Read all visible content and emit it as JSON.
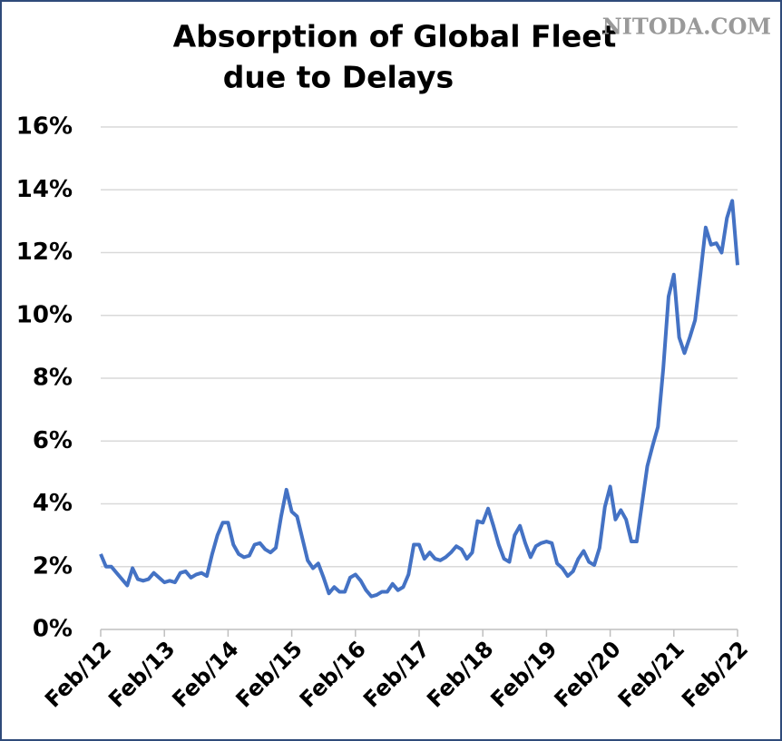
{
  "chart_data": {
    "type": "line",
    "title": [
      "Absorption of Global Fleet",
      "due to Delays"
    ],
    "watermark": "NITODA.COM",
    "categories": [
      "Feb/12",
      null,
      null,
      null,
      null,
      null,
      null,
      null,
      null,
      null,
      null,
      null,
      "Feb/13",
      null,
      null,
      null,
      null,
      null,
      null,
      null,
      null,
      null,
      null,
      null,
      "Feb/14",
      null,
      null,
      null,
      null,
      null,
      null,
      null,
      null,
      null,
      null,
      null,
      "Feb/15",
      null,
      null,
      null,
      null,
      null,
      null,
      null,
      null,
      null,
      null,
      null,
      "Feb/16",
      null,
      null,
      null,
      null,
      null,
      null,
      null,
      null,
      null,
      null,
      null,
      "Feb/17",
      null,
      null,
      null,
      null,
      null,
      null,
      null,
      null,
      null,
      null,
      null,
      "Feb/18",
      null,
      null,
      null,
      null,
      null,
      null,
      null,
      null,
      null,
      null,
      null,
      "Feb/19",
      null,
      null,
      null,
      null,
      null,
      null,
      null,
      null,
      null,
      null,
      null,
      "Feb/20",
      null,
      null,
      null,
      null,
      null,
      null,
      null,
      null,
      null,
      null,
      null,
      "Feb/21",
      null,
      null,
      null,
      null,
      null,
      null,
      null,
      null,
      null,
      null,
      null,
      "Feb/22"
    ],
    "series": [
      {
        "name": "Absorption",
        "color": "#4472c4",
        "values": [
          2.4,
          2.0,
          2.0,
          1.8,
          1.6,
          1.4,
          1.95,
          1.6,
          1.55,
          1.6,
          1.8,
          1.65,
          1.5,
          1.55,
          1.5,
          1.8,
          1.85,
          1.65,
          1.75,
          1.8,
          1.7,
          2.4,
          3.0,
          3.4,
          3.4,
          2.7,
          2.4,
          2.3,
          2.35,
          2.7,
          2.75,
          2.55,
          2.45,
          2.6,
          3.6,
          4.45,
          3.75,
          3.6,
          2.9,
          2.2,
          1.95,
          2.1,
          1.65,
          1.15,
          1.35,
          1.2,
          1.2,
          1.65,
          1.75,
          1.55,
          1.25,
          1.05,
          1.1,
          1.2,
          1.2,
          1.45,
          1.25,
          1.35,
          1.75,
          2.7,
          2.7,
          2.25,
          2.45,
          2.25,
          2.2,
          2.3,
          2.45,
          2.65,
          2.55,
          2.25,
          2.45,
          3.45,
          3.4,
          3.85,
          3.3,
          2.7,
          2.25,
          2.15,
          3.0,
          3.3,
          2.75,
          2.3,
          2.65,
          2.75,
          2.8,
          2.75,
          2.1,
          1.95,
          1.7,
          1.85,
          2.25,
          2.5,
          2.15,
          2.05,
          2.6,
          3.9,
          4.55,
          3.5,
          3.8,
          3.5,
          2.8,
          2.8,
          4.0,
          5.2,
          5.85,
          6.45,
          8.3,
          10.6,
          11.3,
          9.3,
          8.8,
          9.3,
          9.85,
          11.3,
          12.8,
          12.25,
          12.3,
          12.0,
          13.1,
          13.65,
          11.6
        ]
      }
    ],
    "ylim": [
      0,
      16
    ],
    "yticks": [
      {
        "value": 0,
        "label": "0%"
      },
      {
        "value": 2,
        "label": "2%"
      },
      {
        "value": 4,
        "label": "4%"
      },
      {
        "value": 6,
        "label": "6%"
      },
      {
        "value": 8,
        "label": "8%"
      },
      {
        "value": 10,
        "label": "10%"
      },
      {
        "value": 12,
        "label": "12%"
      },
      {
        "value": 14,
        "label": "14%"
      },
      {
        "value": 16,
        "label": "16%"
      }
    ],
    "grid": true
  }
}
